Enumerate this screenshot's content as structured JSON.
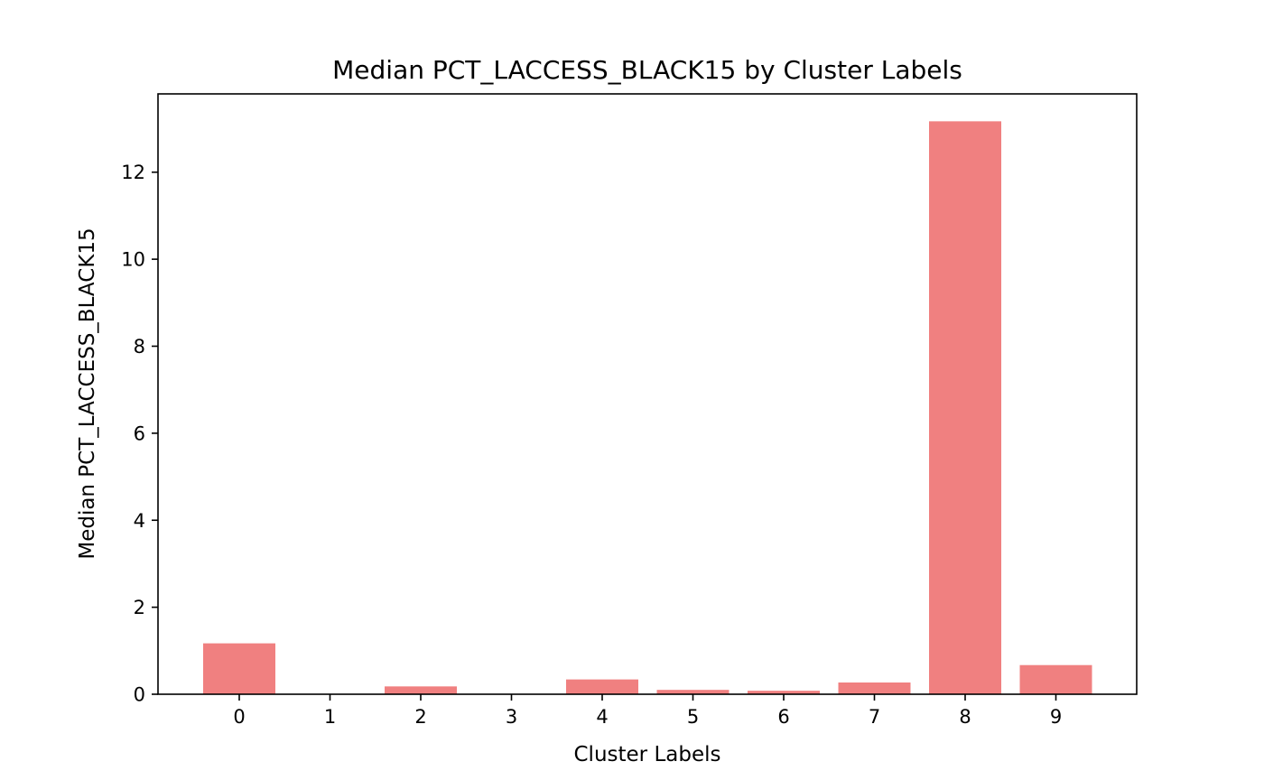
{
  "chart_data": {
    "type": "bar",
    "title": "Median PCT_LACCESS_BLACK15 by Cluster Labels",
    "xlabel": "Cluster Labels",
    "ylabel": "Median PCT_LACCESS_BLACK15",
    "categories": [
      "0",
      "1",
      "2",
      "3",
      "4",
      "5",
      "6",
      "7",
      "8",
      "9"
    ],
    "values": [
      1.17,
      0.0,
      0.18,
      0.0,
      0.34,
      0.1,
      0.08,
      0.27,
      13.17,
      0.67
    ],
    "yticks": [
      0,
      2,
      4,
      6,
      8,
      10,
      12
    ],
    "ylim": [
      0,
      13.8
    ],
    "grid": false,
    "bar_color": "#f08080"
  }
}
